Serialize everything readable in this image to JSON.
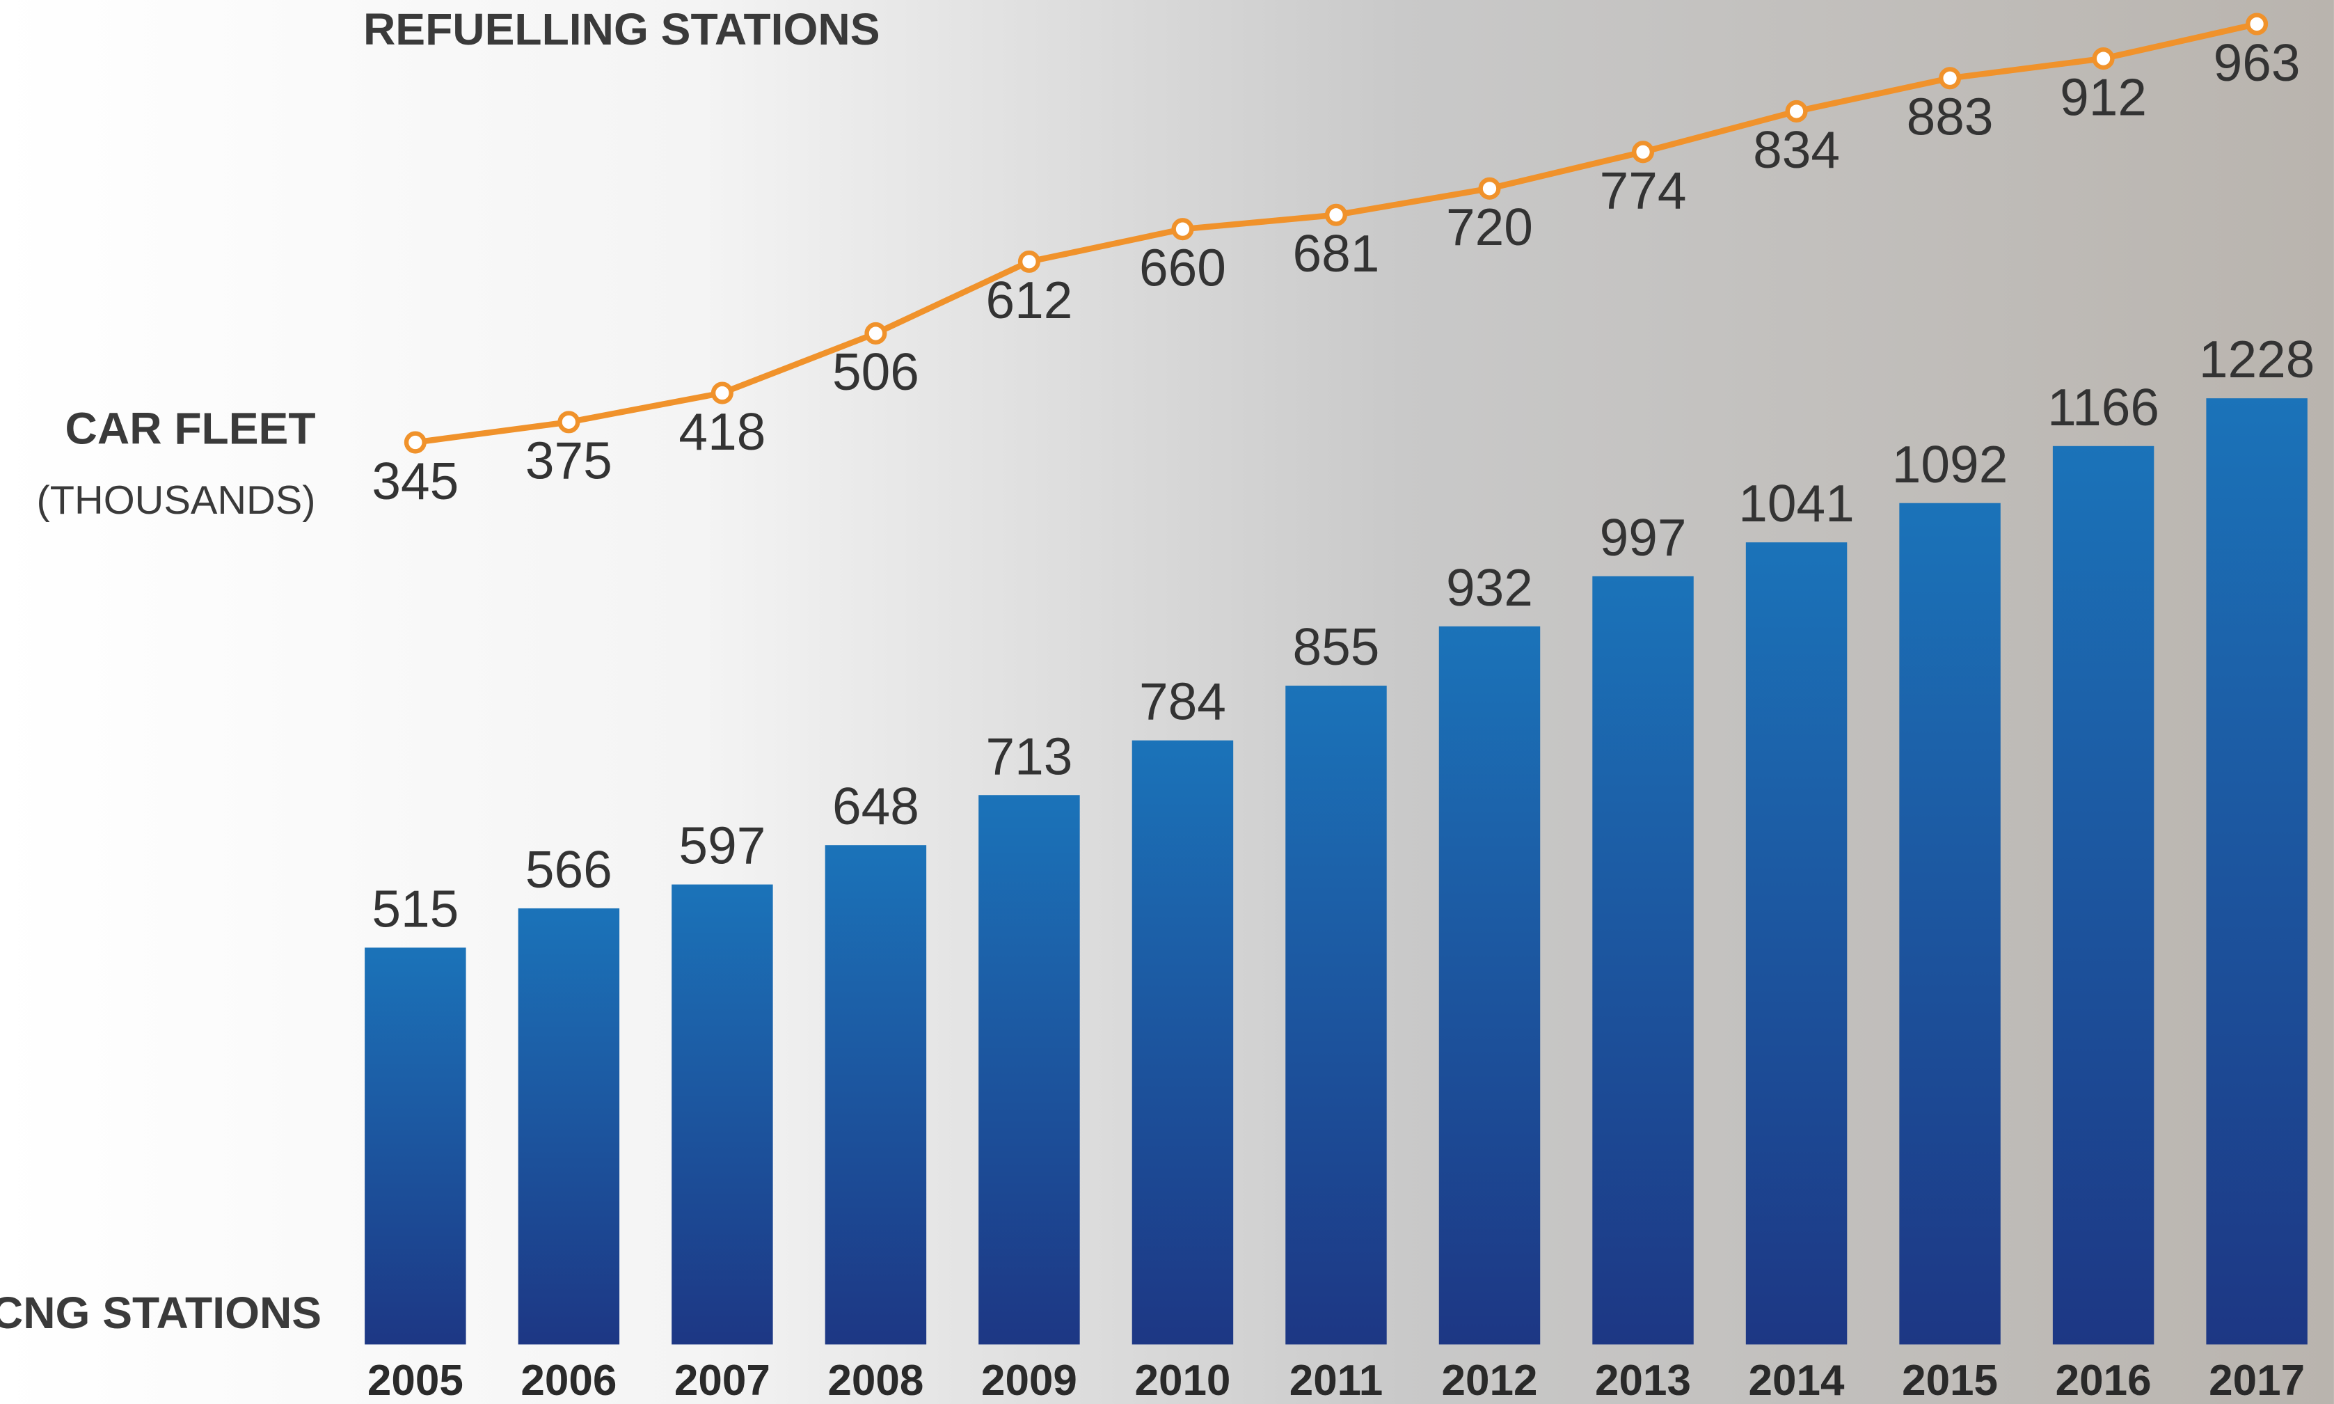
{
  "chart_data": {
    "type": "bar",
    "title": "REFUELLING STATIONS",
    "categories": [
      "2005",
      "2006",
      "2007",
      "2008",
      "2009",
      "2010",
      "2011",
      "2012",
      "2013",
      "2014",
      "2015",
      "2016",
      "2017"
    ],
    "series": [
      {
        "name": "CNG STATIONS",
        "type": "bar",
        "color": "#1a6db3",
        "values": [
          515,
          566,
          597,
          648,
          713,
          784,
          855,
          932,
          997,
          1041,
          1092,
          1166,
          1228
        ]
      },
      {
        "name": "CAR FLEET",
        "subtitle": "(THOUSANDS)",
        "type": "line",
        "color": "#f0922b",
        "values": [
          345,
          375,
          418,
          506,
          612,
          660,
          681,
          720,
          774,
          834,
          883,
          912,
          963
        ]
      }
    ]
  }
}
